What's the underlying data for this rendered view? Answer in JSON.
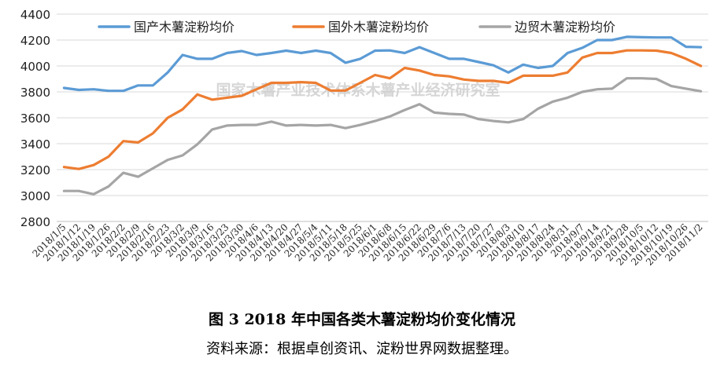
{
  "figure": {
    "caption": "图 3    2018 年中国各类木薯淀粉均价变化情况",
    "source": "资料来源：根据卓创资讯、淀粉世界网数据整理。",
    "watermark": "国家木薯产业技术体系木薯产业经济研究室"
  },
  "chart_data": {
    "type": "line",
    "title": "",
    "xlabel": "",
    "ylabel": "",
    "ylim": [
      2800,
      4400
    ],
    "yticks": [
      2800,
      3000,
      3200,
      3400,
      3600,
      3800,
      4000,
      4200,
      4400
    ],
    "grid": true,
    "legend_position": "top",
    "x": [
      "2018/1/5",
      "2018/1/12",
      "2018/1/19",
      "2018/1/26",
      "2018/2/2",
      "2018/2/9",
      "2018/2/16",
      "2018/2/23",
      "2018/3/2",
      "2018/3/9",
      "2018/3/16",
      "2018/3/23",
      "2018/3/30",
      "2018/4/6",
      "2018/4/13",
      "2018/4/20",
      "2018/4/27",
      "2018/5/4",
      "2018/5/11",
      "2018/5/18",
      "2018/5/25",
      "2018/6/1",
      "2018/6/8",
      "2018/6/15",
      "2018/6/22",
      "2018/6/29",
      "2018/7/6",
      "2018/7/13",
      "2018/7/20",
      "2018/7/27",
      "2018/8/3",
      "2018/8/10",
      "2018/8/17",
      "2018/8/24",
      "2018/8/31",
      "2018/9/7",
      "2018/9/14",
      "2018/9/21",
      "2018/9/28",
      "2018/10/5",
      "2018/10/12",
      "2018/10/19",
      "2018/10/26",
      "2018/11/2"
    ],
    "series": [
      {
        "name": "国产木薯淀粉均价",
        "color": "#5b9bd5",
        "values": [
          3830,
          3815,
          3820,
          3808,
          3808,
          3850,
          3850,
          3950,
          4085,
          4055,
          4055,
          4100,
          4115,
          4085,
          4100,
          4118,
          4100,
          4118,
          4100,
          4025,
          4055,
          4118,
          4120,
          4100,
          4145,
          4100,
          4055,
          4055,
          4030,
          4005,
          3950,
          4010,
          3985,
          4000,
          4100,
          4140,
          4200,
          4200,
          4225,
          4222,
          4220,
          4220,
          4148,
          4145
        ]
      },
      {
        "name": "国外木薯淀粉均价",
        "color": "#ed7d31",
        "values": [
          3220,
          3205,
          3235,
          3300,
          3420,
          3410,
          3480,
          3600,
          3665,
          3780,
          3740,
          3755,
          3770,
          3820,
          3870,
          3870,
          3875,
          3870,
          3810,
          3810,
          3870,
          3930,
          3905,
          3985,
          3965,
          3930,
          3920,
          3895,
          3885,
          3885,
          3870,
          3925,
          3925,
          3925,
          3950,
          4065,
          4100,
          4100,
          4120,
          4120,
          4118,
          4100,
          4055,
          4000
        ]
      },
      {
        "name": "边贸木薯淀粉均价",
        "color": "#a5a5a5",
        "values": [
          3035,
          3035,
          3010,
          3070,
          3175,
          3145,
          3210,
          3275,
          3310,
          3395,
          3510,
          3540,
          3545,
          3545,
          3570,
          3540,
          3545,
          3540,
          3545,
          3520,
          3545,
          3575,
          3610,
          3660,
          3705,
          3640,
          3630,
          3625,
          3590,
          3575,
          3565,
          3590,
          3670,
          3725,
          3755,
          3800,
          3820,
          3825,
          3905,
          3905,
          3900,
          3845,
          3825,
          3805
        ]
      }
    ]
  }
}
